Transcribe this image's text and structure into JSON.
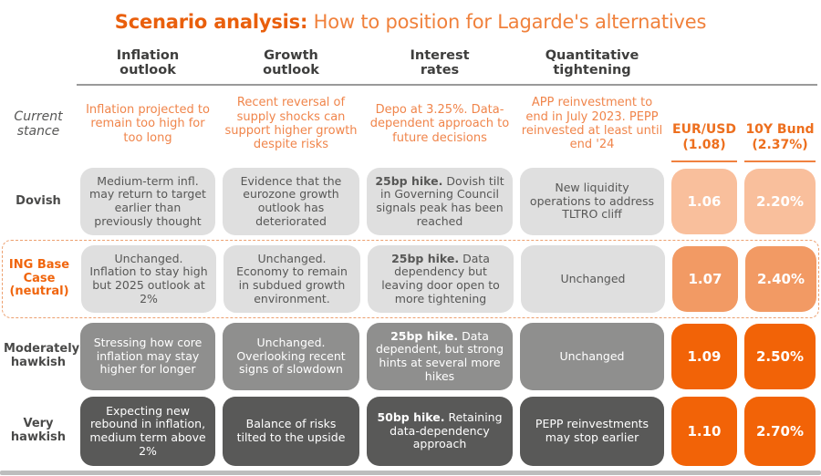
{
  "title": {
    "bold": "Scenario analysis:",
    "rest": " How to position for Lagarde's alternatives"
  },
  "column_headers": [
    "Inflation\noutlook",
    "Growth\noutlook",
    "Interest\nrates",
    "Quantitative\ntightening"
  ],
  "market_headers": {
    "eurusd": "EUR/USD\n(1.08)",
    "bund": "10Y Bund\n(2.37%)"
  },
  "rows": {
    "current": {
      "label": "Current\nstance",
      "inflation": "Inflation projected to remain too high for too long",
      "growth": "Recent reversal of supply shocks can support higher growth despite risks",
      "rates": "Depo at 3.25%. Data-dependent approach to future decisions",
      "qt": "APP reinvestment to end in July 2023. PEPP reinvested at least until end '24"
    },
    "dovish": {
      "label": "Dovish",
      "inflation": "Medium-term infl. may return to target earlier than previously thought",
      "growth": "Evidence that the eurozone growth outlook has deteriorated",
      "rates_bold": "25bp hike.",
      "rates_rest": " Dovish tilt in Governing Council signals peak has been reached",
      "qt": "New liquidity operations to address TLTRO cliff",
      "eurusd": "1.06",
      "bund": "2.20%"
    },
    "ing": {
      "label": "ING Base\nCase\n(neutral)",
      "inflation": "Unchanged. Inflation to stay high but 2025 outlook at 2%",
      "growth": "Unchanged. Economy to remain in subdued growth environment.",
      "rates_bold": "25bp hike.",
      "rates_rest": " Data dependency but leaving door open to more tightening",
      "qt": "Unchanged",
      "eurusd": "1.07",
      "bund": "2.40%"
    },
    "moderately_hawkish": {
      "label": "Moderately\nhawkish",
      "inflation": "Stressing how core inflation may stay higher for longer",
      "growth": "Unchanged. Overlooking recent signs of slowdown",
      "rates_bold": "25bp hike.",
      "rates_rest": " Data dependent, but strong hints at several more hikes",
      "qt": "Unchanged",
      "eurusd": "1.09",
      "bund": "2.50%"
    },
    "very_hawkish": {
      "label": "Very\nhawkish",
      "inflation": "Expecting new rebound in inflation, medium term above 2%",
      "growth": "Balance of risks tilted to the upside",
      "rates_bold": "50bp hike.",
      "rates_rest": " Retaining data-dependency approach",
      "qt": "PEPP reinvestments may stop earlier",
      "eurusd": "1.10",
      "bund": "2.70%"
    }
  },
  "colors": {
    "title_bold": "#e95f0c",
    "title_rest": "#f0813c",
    "accent_orange": "#f26307",
    "ing_orange_mid": "#f29a64",
    "ing_orange_light": "#f9bf9c",
    "gray_light_box": "#dfdfdf",
    "gray_mid_box": "#8f8f8e",
    "gray_dark_box": "#595958",
    "text_dark_gray": "#575756"
  }
}
